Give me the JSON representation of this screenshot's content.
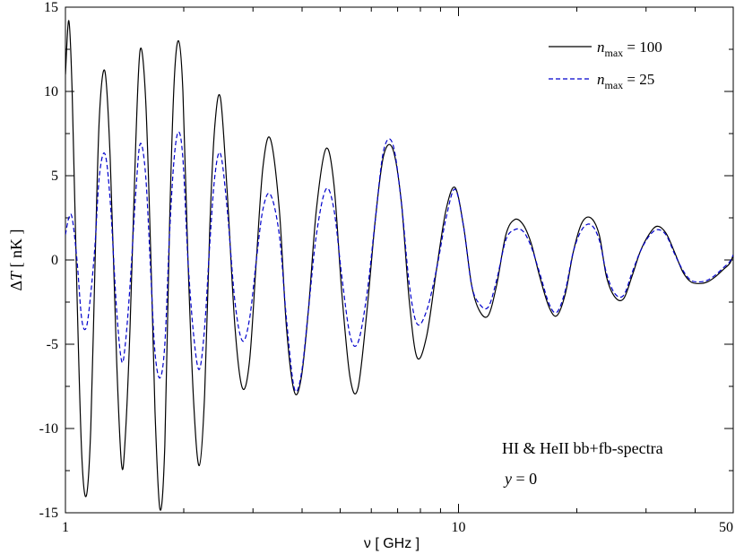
{
  "chart_data": {
    "type": "line",
    "xlabel": "ν [ GHz ]",
    "ylabel_delta": "Δ",
    "ylabel_var": "T",
    "ylabel_unit": " [ nK ]",
    "x_scale": "log",
    "xlim": [
      1,
      50
    ],
    "ylim": [
      -15,
      15
    ],
    "x_ticks": [
      1,
      10,
      50
    ],
    "x_tick_labels": [
      "1",
      "10",
      "50"
    ],
    "y_ticks": [
      15,
      10,
      5,
      0,
      -5,
      -10,
      -15
    ],
    "y_tick_labels": [
      "15",
      "10",
      "5",
      "0",
      "-5",
      "-10",
      "-15"
    ],
    "grid": false,
    "legend_position": "top-right",
    "annotation": {
      "line1": "HI & HeII bb+fb-spectra",
      "line2_var": "y",
      "line2_rest": " = 0"
    },
    "series": [
      {
        "name": "n_max = 100",
        "legend_var": "n",
        "legend_sub": "max",
        "legend_rest": " = 100",
        "color": "#000000",
        "dash": "solid",
        "x": [
          1.0,
          1.02,
          1.04,
          1.07,
          1.1,
          1.13,
          1.16,
          1.19,
          1.22,
          1.26,
          1.3,
          1.35,
          1.39,
          1.42,
          1.46,
          1.51,
          1.55,
          1.6,
          1.65,
          1.69,
          1.74,
          1.79,
          1.84,
          1.89,
          1.94,
          1.99,
          2.05,
          2.12,
          2.19,
          2.26,
          2.33,
          2.4,
          2.48,
          2.58,
          2.7,
          2.82,
          2.94,
          3.06,
          3.18,
          3.32,
          3.5,
          3.65,
          3.82,
          3.98,
          4.15,
          4.35,
          4.6,
          4.82,
          5.05,
          5.3,
          5.55,
          5.85,
          6.15,
          6.45,
          6.8,
          7.15,
          7.5,
          7.85,
          8.3,
          8.8,
          9.3,
          9.8,
          10.3,
          10.8,
          11.3,
          11.9,
          12.5,
          13.2,
          13.9,
          14.6,
          15.3,
          16.1,
          17.0,
          17.8,
          18.7,
          19.6,
          20.6,
          21.7,
          22.8,
          23.8,
          25.0,
          26.3,
          27.6,
          29.0,
          30.5,
          32.0,
          33.7,
          35.4,
          37.2,
          39.0,
          41.0,
          43.0,
          45.0,
          47.0,
          49.0,
          50.0
        ],
        "y": [
          11.0,
          14.2,
          10.0,
          -2.0,
          -11.5,
          -14.0,
          -10.0,
          0.0,
          8.5,
          11.2,
          6.0,
          -6.0,
          -12.2,
          -10.5,
          -4.0,
          7.0,
          12.5,
          9.5,
          0.0,
          -9.0,
          -14.8,
          -11.0,
          2.0,
          10.5,
          13.0,
          10.0,
          0.0,
          -8.5,
          -12.2,
          -8.0,
          2.0,
          8.0,
          9.6,
          4.0,
          -4.0,
          -7.6,
          -6.0,
          0.0,
          5.5,
          7.2,
          3.0,
          -4.0,
          -7.8,
          -7.0,
          -3.0,
          3.0,
          6.6,
          4.5,
          -2.0,
          -7.0,
          -7.6,
          -3.0,
          2.5,
          6.2,
          6.6,
          3.5,
          -2.5,
          -5.8,
          -4.5,
          -0.5,
          3.0,
          4.3,
          2.0,
          -1.5,
          -3.0,
          -3.3,
          -1.5,
          1.5,
          2.4,
          2.1,
          1.0,
          -1.0,
          -2.8,
          -3.3,
          -2.0,
          0.5,
          2.2,
          2.5,
          1.5,
          -1.0,
          -2.2,
          -2.3,
          -1.0,
          0.5,
          1.5,
          2.0,
          1.6,
          0.5,
          -0.7,
          -1.3,
          -1.4,
          -1.3,
          -1.0,
          -0.6,
          -0.2,
          0.3
        ]
      },
      {
        "name": "n_max = 25",
        "legend_var": "n",
        "legend_sub": "max",
        "legend_rest": " = 25",
        "color": "#0000cc",
        "dash": "dashed",
        "x": [
          1.0,
          1.02,
          1.04,
          1.07,
          1.1,
          1.13,
          1.16,
          1.19,
          1.22,
          1.26,
          1.3,
          1.35,
          1.39,
          1.42,
          1.46,
          1.51,
          1.55,
          1.6,
          1.65,
          1.69,
          1.74,
          1.79,
          1.84,
          1.89,
          1.94,
          1.99,
          2.05,
          2.12,
          2.19,
          2.26,
          2.33,
          2.4,
          2.48,
          2.58,
          2.7,
          2.82,
          2.94,
          3.06,
          3.18,
          3.32,
          3.5,
          3.65,
          3.82,
          3.98,
          4.15,
          4.35,
          4.6,
          4.82,
          5.05,
          5.3,
          5.55,
          5.85,
          6.15,
          6.45,
          6.8,
          7.15,
          7.5,
          7.85,
          8.3,
          8.8,
          9.3,
          9.8,
          10.3,
          10.8,
          11.3,
          11.9,
          12.5,
          13.2,
          13.9,
          14.6,
          15.3,
          16.1,
          17.0,
          17.8,
          18.7,
          19.6,
          20.6,
          21.7,
          22.8,
          23.8,
          25.0,
          26.3,
          27.6,
          29.0,
          30.5,
          32.0,
          33.7,
          35.4,
          37.2,
          39.0,
          41.0,
          43.0,
          45.0,
          47.0,
          49.0,
          50.0
        ],
        "y": [
          1.5,
          2.5,
          2.5,
          0.0,
          -3.5,
          -4.0,
          -2.0,
          1.0,
          5.0,
          6.3,
          3.5,
          -3.0,
          -6.0,
          -5.0,
          -1.5,
          4.0,
          6.9,
          5.0,
          -1.0,
          -5.5,
          -7.0,
          -5.0,
          1.5,
          6.0,
          7.6,
          6.0,
          0.0,
          -4.5,
          -6.5,
          -4.0,
          1.0,
          5.0,
          6.3,
          3.0,
          -2.5,
          -4.8,
          -3.5,
          0.0,
          3.0,
          3.9,
          1.5,
          -3.5,
          -7.6,
          -6.8,
          -3.0,
          1.5,
          4.2,
          3.0,
          -1.0,
          -4.5,
          -4.9,
          -2.0,
          2.5,
          6.5,
          6.9,
          3.5,
          -1.5,
          -3.8,
          -3.0,
          -0.5,
          2.5,
          4.2,
          2.0,
          -1.5,
          -2.6,
          -2.8,
          -1.2,
          1.2,
          1.8,
          1.7,
          0.8,
          -0.8,
          -2.6,
          -3.1,
          -1.8,
          0.5,
          1.8,
          2.1,
          1.2,
          -0.8,
          -2.0,
          -2.1,
          -0.8,
          0.5,
          1.4,
          1.8,
          1.5,
          0.4,
          -0.6,
          -1.2,
          -1.3,
          -1.2,
          -0.9,
          -0.5,
          -0.1,
          0.3
        ]
      }
    ]
  }
}
